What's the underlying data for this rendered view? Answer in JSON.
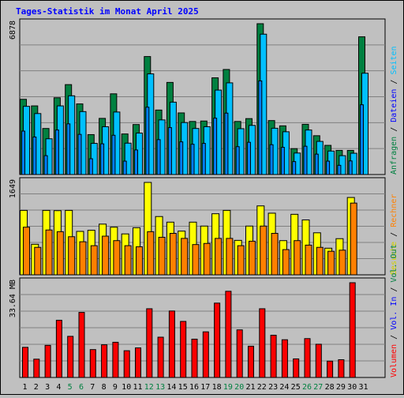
{
  "title": "Tages-Statistik im Monat April 2025",
  "days": [
    "1",
    "2",
    "3",
    "4",
    "5",
    "6",
    "7",
    "8",
    "9",
    "10",
    "11",
    "12",
    "13",
    "14",
    "15",
    "16",
    "17",
    "18",
    "19",
    "20",
    "21",
    "22",
    "23",
    "24",
    "25",
    "26",
    "27",
    "28",
    "29",
    "30",
    "31"
  ],
  "weekend_days": [
    "5",
    "6",
    "12",
    "13",
    "19",
    "20",
    "26",
    "27"
  ],
  "colors": {
    "anfragen": "#008040",
    "dateien": "#00c0ff",
    "seiten": "#00c0ff",
    "besuche": "#ffff00",
    "rechner": "#ff8000",
    "volumen": "#ff0000",
    "title": "#0000ff",
    "weekday_label": "#000000",
    "weekend_label": "#008040"
  },
  "chart_data": [
    {
      "type": "bar",
      "ylabel_max": "6878",
      "ylim": [
        0,
        6878
      ],
      "right_label_parts": [
        {
          "text": "Anfragen",
          "color": "#008040"
        },
        {
          "text": " / ",
          "color": "#000000"
        },
        {
          "text": "Dateien",
          "color": "#0000ff"
        },
        {
          "text": " / ",
          "color": "#000000"
        },
        {
          "text": "Seiten",
          "color": "#00c0ff"
        }
      ],
      "series": [
        {
          "name": "Anfragen",
          "values": [
            3430,
            3130,
            2100,
            3500,
            4100,
            3220,
            1820,
            2560,
            3680,
            1850,
            2280,
            5380,
            2940,
            4200,
            2810,
            2420,
            2440,
            4410,
            4790,
            2420,
            2550,
            6878,
            2460,
            2220,
            1180,
            2290,
            1770,
            1330,
            1100,
            1100,
            6280
          ]
        },
        {
          "name": "Dateien",
          "values": [
            3110,
            2780,
            1630,
            3130,
            3590,
            2870,
            1420,
            2180,
            2850,
            1430,
            1890,
            4590,
            2490,
            3300,
            2370,
            2100,
            2180,
            3850,
            4180,
            2090,
            2240,
            6400,
            2110,
            1950,
            980,
            2030,
            1510,
            1070,
            860,
            970,
            4620
          ]
        },
        {
          "name": "Seiten",
          "values": [
            1980,
            1710,
            860,
            2030,
            2310,
            1830,
            720,
            1400,
            1790,
            610,
            1120,
            3070,
            1590,
            2140,
            1490,
            1380,
            1420,
            2570,
            2800,
            1270,
            1470,
            4270,
            1360,
            1240,
            590,
            1290,
            930,
            610,
            420,
            620,
            3180
          ]
        }
      ]
    },
    {
      "type": "bar",
      "ylabel_max": "1649",
      "ylim": [
        0,
        1649
      ],
      "right_label_parts": [
        {
          "text": "Besuche",
          "color": "#d0d000"
        },
        {
          "text": " / ",
          "color": "#000000"
        },
        {
          "text": "Rechner",
          "color": "#ff8000"
        }
      ],
      "series": [
        {
          "name": "Besuche",
          "values": [
            1150,
            545,
            1150,
            1145,
            1150,
            775,
            795,
            905,
            850,
            730,
            840,
            1649,
            1040,
            940,
            780,
            940,
            870,
            1090,
            1150,
            615,
            870,
            1230,
            1100,
            610,
            1080,
            980,
            750,
            475,
            645,
            1380,
            0
          ]
        },
        {
          "name": "Rechner",
          "values": [
            850,
            490,
            800,
            770,
            680,
            590,
            520,
            690,
            610,
            520,
            500,
            770,
            670,
            740,
            650,
            540,
            560,
            650,
            650,
            520,
            600,
            870,
            740,
            450,
            610,
            530,
            490,
            420,
            440,
            1280,
            0
          ]
        }
      ]
    },
    {
      "type": "bar",
      "ylabel_max": "33.64 MB",
      "ylim": [
        0,
        33.64
      ],
      "right_label_parts": [
        {
          "text": "Volumen",
          "color": "#ff0000"
        },
        {
          "text": " / ",
          "color": "#000000"
        },
        {
          "text": "Vol. In",
          "color": "#0000ff"
        },
        {
          "text": " / ",
          "color": "#000000"
        },
        {
          "text": "Vol. Out",
          "color": "#008040"
        }
      ],
      "series": [
        {
          "name": "Volumen",
          "values": [
            10.7,
            6.5,
            11.4,
            20.3,
            14.6,
            23.1,
            9.9,
            11.6,
            12.5,
            9.5,
            10.5,
            24.4,
            14.3,
            23.6,
            19.9,
            13.6,
            16.2,
            26.4,
            30.6,
            16.9,
            11.1,
            24.4,
            15.0,
            13.4,
            6.6,
            13.8,
            11.8,
            5.8,
            6.3,
            33.64,
            0
          ]
        }
      ]
    }
  ]
}
